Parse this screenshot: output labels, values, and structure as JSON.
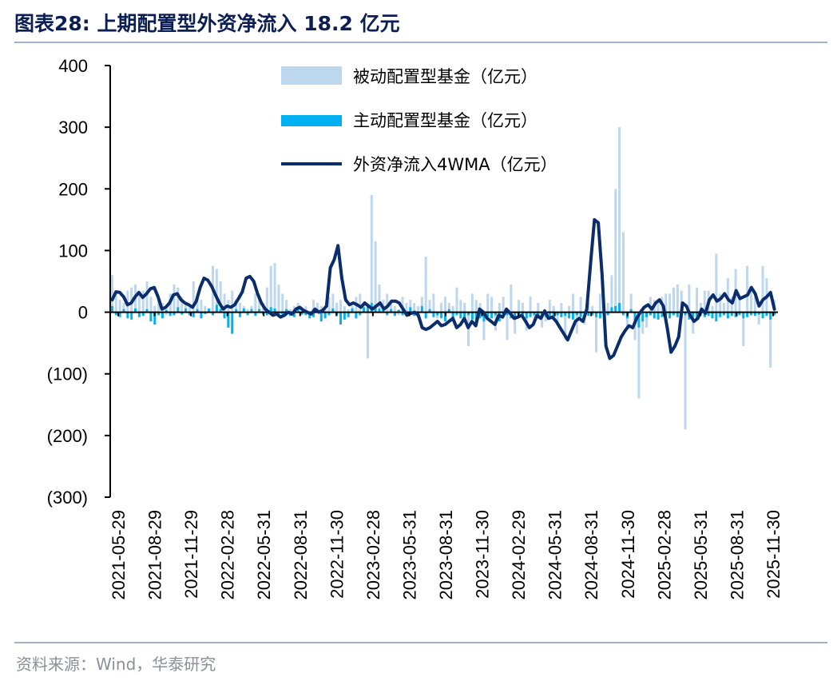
{
  "title": "图表28:  上期配置型外资净流入 18.2 亿元",
  "source": "资料来源：Wind，华泰研究",
  "colors": {
    "passive": "#bdd7ee",
    "active": "#00b0f0",
    "line": "#0b2d6b",
    "rule": "#9fb2c8",
    "title": "#0b1f55"
  },
  "chart_data": {
    "type": "bar",
    "ylim": [
      -300,
      400
    ],
    "yticks": [
      400,
      300,
      200,
      100,
      0,
      -100,
      -200,
      -300
    ],
    "ytick_labels": [
      "400",
      "300",
      "200",
      "100",
      "0",
      "(100)",
      "(200)",
      "(300)"
    ],
    "xtick_labels": [
      "2021-05-29",
      "2021-08-29",
      "2021-11-29",
      "2022-02-28",
      "2022-05-31",
      "2022-08-31",
      "2022-11-30",
      "2023-02-28",
      "2023-05-31",
      "2023-08-31",
      "2023-11-30",
      "2024-02-29",
      "2024-05-31",
      "2024-08-31",
      "2024-11-30",
      "2025-02-28",
      "2025-05-31",
      "2025-08-31",
      "2025-11-30"
    ],
    "legend": [
      "被动配置型基金（亿元）",
      "主动配置型基金（亿元）",
      "外资净流入4WMA（亿元）"
    ],
    "legend_position": "top",
    "series": [
      {
        "name": "被动配置型基金（亿元）",
        "type": "bar",
        "values": [
          60,
          30,
          20,
          15,
          35,
          40,
          45,
          30,
          35,
          50,
          25,
          10,
          20,
          15,
          -5,
          30,
          45,
          40,
          25,
          15,
          10,
          50,
          30,
          20,
          10,
          5,
          75,
          70,
          50,
          30,
          20,
          35,
          20,
          15,
          10,
          5,
          10,
          30,
          25,
          15,
          40,
          75,
          80,
          45,
          30,
          20,
          5,
          10,
          15,
          5,
          10,
          -5,
          20,
          15,
          10,
          5,
          25,
          30,
          15,
          20,
          10,
          5,
          10,
          25,
          30,
          15,
          -75,
          190,
          115,
          45,
          20,
          30,
          15,
          10,
          -5,
          25,
          15,
          20,
          15,
          10,
          25,
          90,
          20,
          30,
          -10,
          15,
          25,
          15,
          10,
          40,
          20,
          15,
          -55,
          30,
          20,
          15,
          -45,
          30,
          25,
          -30,
          15,
          25,
          -45,
          45,
          -35,
          20,
          15,
          -30,
          25,
          -20,
          15,
          -25,
          -15,
          20,
          10,
          -20,
          15,
          -45,
          10,
          30,
          -35,
          25,
          -20,
          15,
          10,
          -65,
          30,
          20,
          15,
          60,
          200,
          300,
          130,
          -25,
          30,
          -45,
          -140,
          -35,
          -25,
          25,
          20,
          15,
          25,
          30,
          30,
          40,
          45,
          35,
          -190,
          45,
          -35,
          40,
          15,
          35,
          35,
          10,
          95,
          30,
          15,
          55,
          25,
          70,
          25,
          -55,
          75,
          35,
          25,
          -20,
          75,
          55,
          -90,
          20
        ],
        "description": "weekly passive allocation fund flows"
      },
      {
        "name": "主动配置型基金（亿元）",
        "type": "bar",
        "values": [
          10,
          -5,
          -8,
          5,
          -10,
          -12,
          6,
          -8,
          -6,
          5,
          -15,
          -20,
          -5,
          -10,
          4,
          -6,
          -5,
          8,
          -4,
          6,
          -5,
          -8,
          5,
          -10,
          -3,
          6,
          -5,
          12,
          5,
          -10,
          -25,
          -35,
          5,
          -8,
          6,
          -5,
          5,
          -6,
          5,
          -4,
          -5,
          8,
          6,
          -5,
          -4,
          5,
          -6,
          -8,
          5,
          -4,
          -5,
          -10,
          -8,
          4,
          -15,
          -10,
          -5,
          6,
          -5,
          -20,
          -12,
          -8,
          6,
          -10,
          -5,
          8,
          12,
          15,
          12,
          6,
          8,
          -5,
          5,
          -6,
          4,
          -5,
          -5,
          8,
          -6,
          -8,
          10,
          -10,
          5,
          -8,
          -5,
          -10,
          -15,
          5,
          -8,
          -5,
          -10,
          -8,
          -5,
          -12,
          -20,
          -10,
          -15,
          -8,
          -10,
          -5,
          -15,
          -8,
          -5,
          -10,
          -12,
          -8,
          -5,
          -10,
          -8,
          -5,
          -10,
          -5,
          -8,
          -6,
          -10,
          -5,
          -8,
          -6,
          -10,
          -12,
          -5,
          -8,
          -10,
          -6,
          -5,
          -8,
          -10,
          -6,
          -5,
          8,
          10,
          15,
          -5,
          -10,
          5,
          -20,
          -25,
          -15,
          -8,
          -5,
          -10,
          -12,
          -8,
          -6,
          -10,
          -5,
          -8,
          -10,
          -5,
          -12,
          -8,
          -10,
          -5,
          -8,
          -6,
          -10,
          -15,
          -8,
          -5,
          -10,
          -6,
          -8,
          -5,
          -10,
          -8,
          -5,
          -6,
          -4,
          -10,
          -6,
          -12,
          -5
        ],
        "description": "weekly active allocation fund flows"
      },
      {
        "name": "外资净流入4WMA（亿元）",
        "type": "line",
        "values": [
          20,
          33,
          32,
          25,
          12,
          15,
          25,
          32,
          24,
          30,
          38,
          40,
          25,
          5,
          8,
          15,
          28,
          30,
          20,
          15,
          12,
          8,
          18,
          40,
          55,
          52,
          42,
          28,
          15,
          5,
          10,
          8,
          12,
          22,
          33,
          55,
          58,
          50,
          30,
          15,
          5,
          0,
          -5,
          -3,
          -8,
          -5,
          0,
          -3,
          5,
          8,
          3,
          0,
          -3,
          5,
          0,
          3,
          10,
          72,
          85,
          108,
          55,
          20,
          12,
          15,
          12,
          8,
          15,
          10,
          5,
          10,
          15,
          5,
          10,
          18,
          18,
          15,
          5,
          -5,
          -2,
          0,
          -5,
          -25,
          -28,
          -25,
          -20,
          -15,
          -22,
          -20,
          -15,
          -10,
          -25,
          -20,
          -10,
          -25,
          -15,
          -22,
          5,
          0,
          -10,
          -15,
          -20,
          -5,
          -8,
          5,
          -2,
          -10,
          -8,
          -5,
          -15,
          -25,
          -20,
          -5,
          -10,
          2,
          -10,
          -8,
          -15,
          -25,
          -35,
          -45,
          -30,
          -15,
          -10,
          -15,
          5,
          80,
          150,
          145,
          60,
          -55,
          -75,
          -70,
          -55,
          -40,
          -30,
          -22,
          -25,
          -10,
          0,
          8,
          12,
          5,
          15,
          20,
          10,
          -25,
          -65,
          -55,
          -40,
          15,
          10,
          -5,
          -15,
          -10,
          5,
          -2,
          20,
          28,
          18,
          22,
          30,
          20,
          15,
          35,
          22,
          25,
          28,
          40,
          30,
          10,
          20,
          25,
          32,
          5
        ]
      }
    ]
  }
}
